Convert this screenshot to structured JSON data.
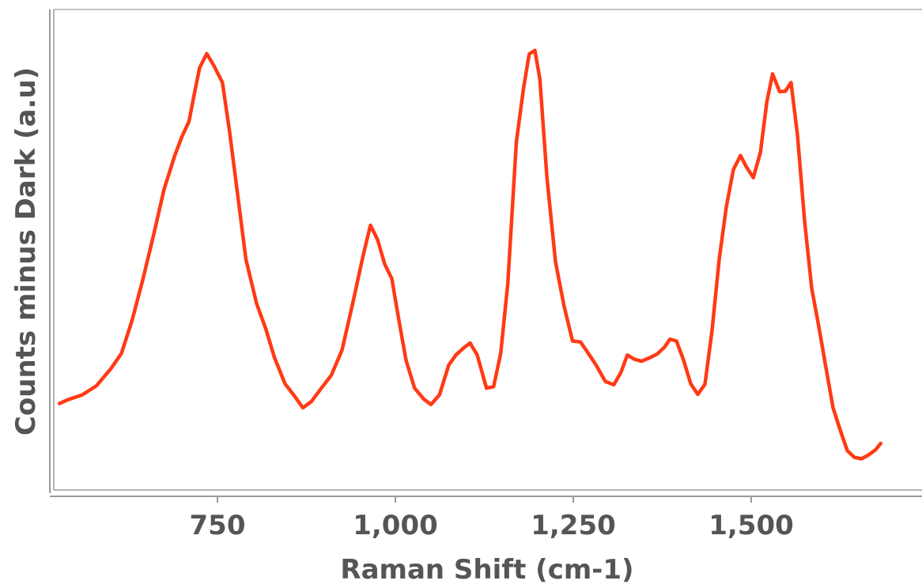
{
  "chart_data": {
    "type": "line",
    "xlabel": "Raman Shift (cm-1)",
    "ylabel": "Counts minus Dark (a.u)",
    "xlim": [
      520,
      1740
    ],
    "ylim": [
      0,
      100
    ],
    "x_ticks": [
      {
        "value": 750,
        "label": "750"
      },
      {
        "value": 1000,
        "label": "1,000"
      },
      {
        "value": 1250,
        "label": "1,250"
      },
      {
        "value": 1500,
        "label": "1,500"
      }
    ],
    "y_ticks_visible": false,
    "grid": false,
    "line_color": "#ff3a14",
    "series": [
      {
        "points": [
          [
            528,
            18.0
          ],
          [
            540,
            18.8
          ],
          [
            560,
            19.8
          ],
          [
            580,
            21.7
          ],
          [
            600,
            25.2
          ],
          [
            615,
            28.4
          ],
          [
            630,
            35.3
          ],
          [
            645,
            43.7
          ],
          [
            660,
            52.9
          ],
          [
            675,
            62.6
          ],
          [
            690,
            69.6
          ],
          [
            700,
            73.5
          ],
          [
            710,
            76.7
          ],
          [
            718,
            82.8
          ],
          [
            725,
            87.9
          ],
          [
            735,
            90.8
          ],
          [
            745,
            88.3
          ],
          [
            757,
            84.8
          ],
          [
            767,
            74.6
          ],
          [
            778,
            61.9
          ],
          [
            790,
            48.0
          ],
          [
            805,
            38.8
          ],
          [
            818,
            33.5
          ],
          [
            830,
            27.6
          ],
          [
            845,
            22.1
          ],
          [
            858,
            19.6
          ],
          [
            870,
            17.1
          ],
          [
            882,
            18.4
          ],
          [
            895,
            21.0
          ],
          [
            910,
            23.9
          ],
          [
            925,
            29.1
          ],
          [
            940,
            38.8
          ],
          [
            955,
            49.0
          ],
          [
            965,
            55.1
          ],
          [
            975,
            52.1
          ],
          [
            985,
            47.0
          ],
          [
            995,
            44.0
          ],
          [
            1005,
            35.3
          ],
          [
            1015,
            27.0
          ],
          [
            1027,
            21.2
          ],
          [
            1040,
            18.9
          ],
          [
            1050,
            17.8
          ],
          [
            1062,
            19.8
          ],
          [
            1075,
            26.0
          ],
          [
            1085,
            28.1
          ],
          [
            1097,
            29.7
          ],
          [
            1105,
            30.6
          ],
          [
            1115,
            28.1
          ],
          [
            1128,
            21.2
          ],
          [
            1138,
            21.5
          ],
          [
            1148,
            28.4
          ],
          [
            1158,
            43.0
          ],
          [
            1170,
            72.4
          ],
          [
            1180,
            83.5
          ],
          [
            1188,
            90.7
          ],
          [
            1196,
            91.5
          ],
          [
            1203,
            85.6
          ],
          [
            1213,
            65.0
          ],
          [
            1225,
            47.5
          ],
          [
            1237,
            38.3
          ],
          [
            1249,
            31.0
          ],
          [
            1260,
            30.8
          ],
          [
            1270,
            28.7
          ],
          [
            1282,
            26.0
          ],
          [
            1295,
            22.6
          ],
          [
            1307,
            21.9
          ],
          [
            1317,
            24.5
          ],
          [
            1326,
            28.1
          ],
          [
            1336,
            27.2
          ],
          [
            1346,
            26.8
          ],
          [
            1357,
            27.5
          ],
          [
            1368,
            28.3
          ],
          [
            1378,
            29.7
          ],
          [
            1386,
            31.4
          ],
          [
            1395,
            31.0
          ],
          [
            1405,
            27.0
          ],
          [
            1415,
            22.1
          ],
          [
            1425,
            19.9
          ],
          [
            1435,
            22.0
          ],
          [
            1445,
            33.2
          ],
          [
            1455,
            48.0
          ],
          [
            1465,
            58.9
          ],
          [
            1475,
            66.7
          ],
          [
            1485,
            69.6
          ],
          [
            1493,
            67.3
          ],
          [
            1503,
            65.0
          ],
          [
            1513,
            70.3
          ],
          [
            1522,
            80.8
          ],
          [
            1530,
            86.6
          ],
          [
            1540,
            82.9
          ],
          [
            1548,
            83.0
          ],
          [
            1556,
            84.8
          ],
          [
            1565,
            73.9
          ],
          [
            1575,
            56.0
          ],
          [
            1585,
            42.0
          ],
          [
            1595,
            34.0
          ],
          [
            1605,
            25.5
          ],
          [
            1615,
            17.1
          ],
          [
            1625,
            12.5
          ],
          [
            1635,
            8.2
          ],
          [
            1645,
            6.8
          ],
          [
            1655,
            6.5
          ],
          [
            1665,
            7.3
          ],
          [
            1675,
            8.4
          ],
          [
            1682,
            9.7
          ]
        ]
      }
    ]
  }
}
